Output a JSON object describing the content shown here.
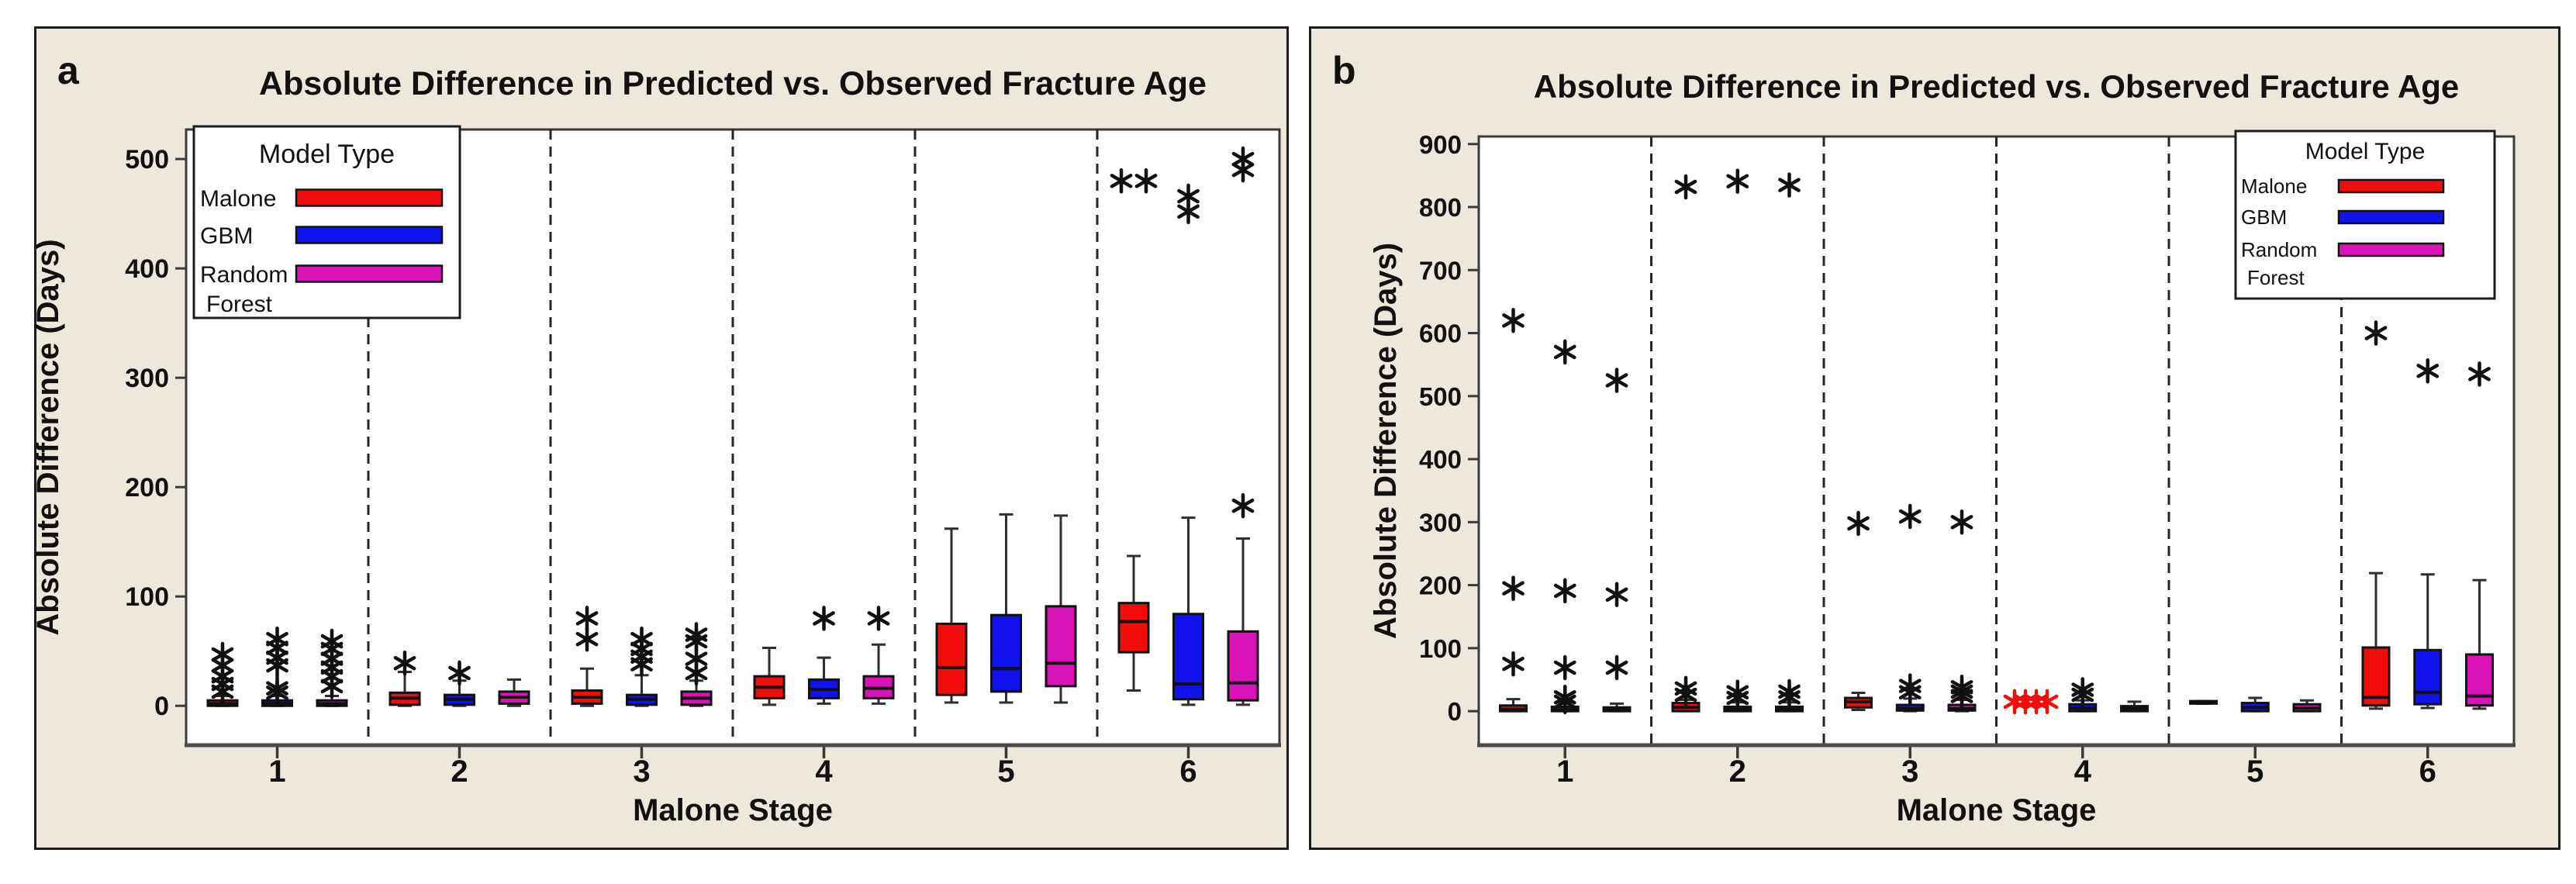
{
  "page": {
    "background": "#ffffff"
  },
  "chart_data": [
    {
      "type": "box",
      "panel_label": "a",
      "title": "Absolute Difference in Predicted vs. Observed Fracture Age",
      "xlabel": "Malone Stage",
      "ylabel": "Absolute Difference (Days)",
      "ylim": [
        -36,
        527
      ],
      "yticks": [
        0,
        100,
        200,
        300,
        400,
        500
      ],
      "categories": [
        "1",
        "2",
        "3",
        "4",
        "5",
        "6"
      ],
      "grid": false,
      "separator_style": "dashed",
      "legend": {
        "title": "Model Type",
        "position": "top-left",
        "entries": [
          {
            "label": "Malone",
            "color": "#f20d0d"
          },
          {
            "label": "GBM",
            "color": "#1111ee"
          },
          {
            "label": "Random Forest",
            "color": "#d913b8"
          }
        ]
      },
      "colors": {
        "Malone": "#f20d0d",
        "GBM": "#1111ee",
        "Random Forest": "#d913b8"
      },
      "styles": {
        "panel_bg": "#ede8db",
        "plot_bg": "#ffffff",
        "frame": "#3a3a3a",
        "axis": "#4a4a4a",
        "text": "#111111",
        "outlier": "#111111"
      },
      "groups": [
        {
          "stage": "1",
          "boxes": [
            {
              "model": "Malone",
              "whislo": 0,
              "q1": 0,
              "med": 2,
              "q3": 5,
              "whishi": 9,
              "outliers": [
                13,
                20,
                27,
                37,
                47
              ]
            },
            {
              "model": "GBM",
              "whislo": 0,
              "q1": 0,
              "med": 2,
              "q3": 5,
              "whishi": 9,
              "outliers": [
                12,
                16,
                37,
                44,
                53,
                61
              ]
            },
            {
              "model": "Random Forest",
              "whislo": 0,
              "q1": 0,
              "med": 2,
              "q3": 5,
              "whishi": 9,
              "outliers": [
                18,
                27,
                35,
                43,
                52,
                59
              ]
            }
          ]
        },
        {
          "stage": "2",
          "boxes": [
            {
              "model": "Malone",
              "whislo": 0,
              "q1": 1,
              "med": 7,
              "q3": 12,
              "whishi": 31,
              "outliers": [
                39
              ]
            },
            {
              "model": "GBM",
              "whislo": 0,
              "q1": 1,
              "med": 6,
              "q3": 10,
              "whishi": 23,
              "outliers": [
                30
              ]
            },
            {
              "model": "Random Forest",
              "whislo": 0,
              "q1": 2,
              "med": 8,
              "q3": 13,
              "whishi": 24,
              "outliers": []
            }
          ]
        },
        {
          "stage": "3",
          "boxes": [
            {
              "model": "Malone",
              "whislo": 0,
              "q1": 2,
              "med": 8,
              "q3": 14,
              "whishi": 34,
              "outliers": [
                61,
                80
              ]
            },
            {
              "model": "GBM",
              "whislo": 0,
              "q1": 1,
              "med": 6,
              "q3": 10,
              "whishi": 28,
              "outliers": [
                38,
                45,
                52,
                61
              ]
            },
            {
              "model": "Random Forest",
              "whislo": 0,
              "q1": 1,
              "med": 7,
              "q3": 13,
              "whishi": 23,
              "outliers": [
                30,
                43,
                59,
                65
              ]
            }
          ]
        },
        {
          "stage": "4",
          "boxes": [
            {
              "model": "Malone",
              "whislo": 1,
              "q1": 7,
              "med": 17,
              "q3": 27,
              "whishi": 53,
              "outliers": []
            },
            {
              "model": "GBM",
              "whislo": 2,
              "q1": 7,
              "med": 15,
              "q3": 24,
              "whishi": 44,
              "outliers": [
                80
              ]
            },
            {
              "model": "Random Forest",
              "whislo": 2,
              "q1": 7,
              "med": 16,
              "q3": 27,
              "whishi": 56,
              "outliers": [
                80
              ]
            }
          ]
        },
        {
          "stage": "5",
          "boxes": [
            {
              "model": "Malone",
              "whislo": 3,
              "q1": 10,
              "med": 35,
              "q3": 75,
              "whishi": 162,
              "outliers": []
            },
            {
              "model": "GBM",
              "whislo": 3,
              "q1": 13,
              "med": 34,
              "q3": 83,
              "whishi": 175,
              "outliers": []
            },
            {
              "model": "Random Forest",
              "whislo": 3,
              "q1": 18,
              "med": 39,
              "q3": 91,
              "whishi": 174,
              "outliers": []
            }
          ]
        },
        {
          "stage": "6",
          "boxes": [
            {
              "model": "Malone",
              "whislo": 14,
              "q1": 49,
              "med": 77,
              "q3": 94,
              "whishi": 137,
              "outliers": [
                480,
                480
              ],
              "outlier_layout": "horizontal",
              "outlier_spacing": 32
            },
            {
              "model": "GBM",
              "whislo": 1,
              "q1": 6,
              "med": 20,
              "q3": 84,
              "whishi": 172,
              "outliers": [
                452,
                466
              ]
            },
            {
              "model": "Random Forest",
              "whislo": 1,
              "q1": 5,
              "med": 21,
              "q3": 68,
              "whishi": 153,
              "outliers": [
                183,
                490,
                500
              ]
            }
          ]
        }
      ]
    },
    {
      "type": "box",
      "panel_label": "b",
      "title": "Absolute Difference in Predicted vs. Observed Fracture Age",
      "xlabel": "Malone Stage",
      "ylabel": "Absolute Difference (Days)",
      "ylim": [
        -54,
        912
      ],
      "yticks": [
        0,
        100,
        200,
        300,
        400,
        500,
        600,
        700,
        800,
        900
      ],
      "categories": [
        "1",
        "2",
        "3",
        "4",
        "5",
        "6"
      ],
      "grid": false,
      "separator_style": "dashed",
      "legend": {
        "title": "Model Type",
        "position": "top-right",
        "entries": [
          {
            "label": "Malone",
            "color": "#f20d0d"
          },
          {
            "label": "GBM",
            "color": "#1111ee"
          },
          {
            "label": "Random Forest",
            "color": "#d913b8"
          }
        ]
      },
      "colors": {
        "Malone": "#f20d0d",
        "GBM": "#1111ee",
        "Random Forest": "#d913b8"
      },
      "styles": {
        "panel_bg": "#ede8db",
        "plot_bg": "#ffffff",
        "frame": "#3a3a3a",
        "axis": "#4a4a4a",
        "text": "#111111",
        "outlier": "#111111"
      },
      "groups": [
        {
          "stage": "1",
          "boxes": [
            {
              "model": "Malone",
              "whislo": 0,
              "q1": 0,
              "med": 3,
              "q3": 9,
              "whishi": 19,
              "outliers": [
                75,
                195,
                620
              ]
            },
            {
              "model": "GBM",
              "whislo": 0,
              "q1": 0,
              "med": 2,
              "q3": 7,
              "whishi": 14,
              "outliers": [
                15,
                22,
                69,
                191,
                570
              ]
            },
            {
              "model": "Random Forest",
              "whislo": 0,
              "q1": 0,
              "med": 2,
              "q3": 6,
              "whishi": 12,
              "outliers": [
                69,
                185,
                525
              ]
            }
          ]
        },
        {
          "stage": "2",
          "boxes": [
            {
              "model": "Malone",
              "whislo": 0,
              "q1": 0,
              "med": 6,
              "q3": 13,
              "whishi": 18,
              "outliers": [
                26,
                36,
                832
              ]
            },
            {
              "model": "GBM",
              "whislo": 0,
              "q1": 0,
              "med": 3,
              "q3": 7,
              "whishi": 14,
              "outliers": [
                21,
                30,
                841
              ]
            },
            {
              "model": "Random Forest",
              "whislo": 0,
              "q1": 0,
              "med": 3,
              "q3": 7,
              "whishi": 14,
              "outliers": [
                22,
                31,
                835
              ]
            }
          ]
        },
        {
          "stage": "3",
          "boxes": [
            {
              "model": "Malone",
              "whislo": 2,
              "q1": 6,
              "med": 15,
              "q3": 21,
              "whishi": 29,
              "outliers": [
                298
              ]
            },
            {
              "model": "GBM",
              "whislo": 0,
              "q1": 1,
              "med": 4,
              "q3": 10,
              "whishi": 20,
              "outliers": [
                30,
                40,
                309
              ]
            },
            {
              "model": "Random Forest",
              "whislo": 0,
              "q1": 1,
              "med": 4,
              "q3": 10,
              "whishi": 18,
              "outliers": [
                24,
                31,
                38,
                300
              ]
            }
          ]
        },
        {
          "stage": "4",
          "boxes": [
            {
              "model": "Malone",
              "box": false,
              "outliers": [
                15,
                15,
                15,
                15
              ],
              "outlier_layout": "horizontal",
              "outlier_spacing": 14,
              "outlier_color": "#f20d0d"
            },
            {
              "model": "GBM",
              "whislo": 0,
              "q1": 0,
              "med": 5,
              "q3": 11,
              "whishi": 17,
              "outliers": [
                26,
                34
              ]
            },
            {
              "model": "Random Forest",
              "whislo": 0,
              "q1": 0,
              "med": 4,
              "q3": 8,
              "whishi": 15,
              "outliers": []
            }
          ]
        },
        {
          "stage": "5",
          "boxes": [
            {
              "model": "Malone",
              "whislo": 12,
              "q1": 12,
              "med": 14,
              "q3": 16,
              "whishi": 16,
              "outliers": []
            },
            {
              "model": "GBM",
              "whislo": 0,
              "q1": 0,
              "med": 6,
              "q3": 13,
              "whishi": 21,
              "outliers": []
            },
            {
              "model": "Random Forest",
              "whislo": 0,
              "q1": 0,
              "med": 5,
              "q3": 11,
              "whishi": 17,
              "outliers": []
            }
          ]
        },
        {
          "stage": "6",
          "boxes": [
            {
              "model": "Malone",
              "whislo": 4,
              "q1": 9,
              "med": 22,
              "q3": 101,
              "whishi": 219,
              "outliers": [
                600
              ]
            },
            {
              "model": "GBM",
              "whislo": 5,
              "q1": 11,
              "med": 30,
              "q3": 97,
              "whishi": 217,
              "outliers": [
                540
              ]
            },
            {
              "model": "Random Forest",
              "whislo": 4,
              "q1": 9,
              "med": 24,
              "q3": 90,
              "whishi": 208,
              "outliers": [
                535
              ]
            }
          ]
        }
      ]
    }
  ]
}
